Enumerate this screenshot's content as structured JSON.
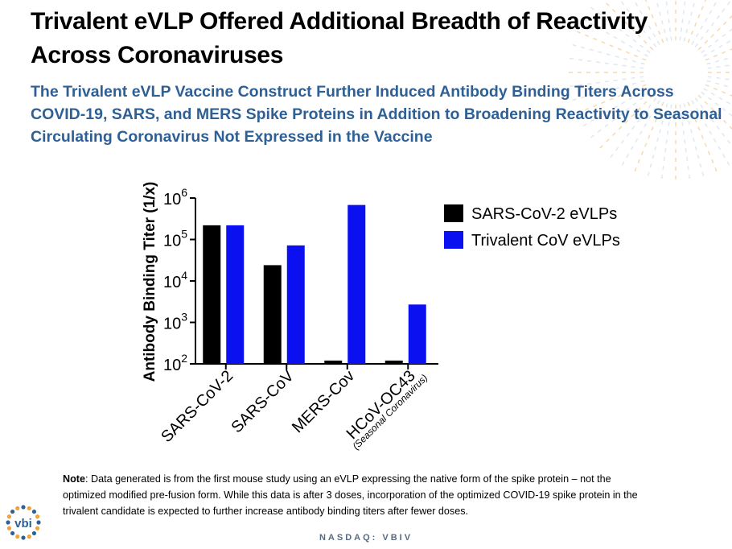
{
  "title": "Trivalent eVLP Offered Additional Breadth of Reactivity Across Coronaviruses",
  "subtitle": "The Trivalent eVLP Vaccine Construct Further Induced Antibody Binding Titers Across COVID-19, SARS, and MERS Spike Proteins in Addition to Broadening Reactivity to Seasonal Circulating Coronavirus Not Expressed in the Vaccine",
  "chart_data": {
    "type": "bar",
    "scale": "log",
    "ylabel": "Antibody Binding Titer (1/x)",
    "ylim": [
      100,
      1000000
    ],
    "yticks": [
      {
        "value": 100,
        "base": "10",
        "exp": "2"
      },
      {
        "value": 1000,
        "base": "10",
        "exp": "3"
      },
      {
        "value": 10000,
        "base": "10",
        "exp": "4"
      },
      {
        "value": 100000,
        "base": "10",
        "exp": "5"
      },
      {
        "value": 1000000,
        "base": "10",
        "exp": "6"
      }
    ],
    "categories": [
      "SARS-CoV-2",
      "SARS-CoV",
      "MERS-Cov",
      "HCoV-OC43"
    ],
    "category_sublabels": [
      "",
      "",
      "",
      "(Seasonal Coronavirus)"
    ],
    "series": [
      {
        "name": "SARS-CoV-2 eVLPs",
        "color": "#000000",
        "values": [
          220000,
          24000,
          120,
          120
        ]
      },
      {
        "name": "Trivalent CoV eVLPs",
        "color": "#0a10f0",
        "values": [
          220000,
          72000,
          680000,
          2700
        ]
      }
    ],
    "legend_position": "right",
    "grid": false
  },
  "note": {
    "label": "Note",
    "lines": [
      ": Data generated is from the first mouse study using an eVLP expressing the native form of the spike protein – not the",
      "optimized modified pre-fusion form.  While this data is after 3 doses, incorporation of the optimized COVID-19 spike protein in the",
      "trivalent candidate is expected to further increase antibody binding titers after fewer doses."
    ]
  },
  "footer": "NASDAQ: VBIV",
  "logo_text": "vbi",
  "colors": {
    "subtitle": "#2e5f95",
    "footer": "#5a6a7e",
    "logo": "#2e5f95"
  }
}
